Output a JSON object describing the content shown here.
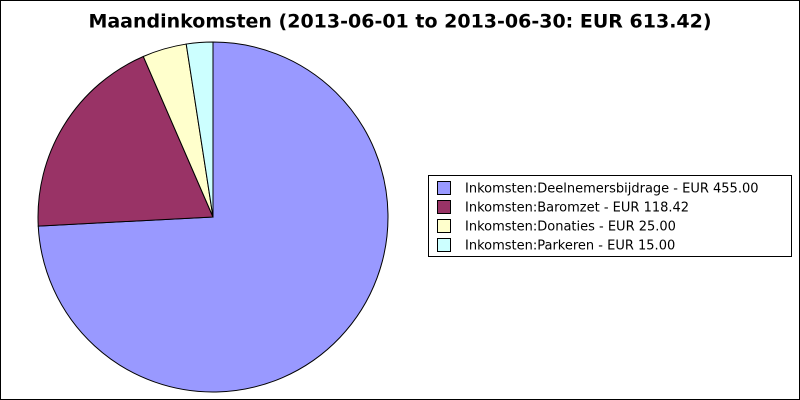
{
  "chart_data": {
    "type": "pie",
    "title": "Maandinkomsten (2013-06-01 to 2013-06-30: EUR 613.42)",
    "categories": [
      "Inkomsten:Deelnemersbijdrage - EUR 455.00",
      "Inkomsten:Baromzet - EUR 118.42",
      "Inkomsten:Donaties - EUR 25.00",
      "Inkomsten:Parkeren - EUR 15.00"
    ],
    "values": [
      455,
      118.42,
      25,
      15
    ],
    "colors": [
      "#9999ff",
      "#993366",
      "#ffffcc",
      "#ccffff"
    ]
  }
}
